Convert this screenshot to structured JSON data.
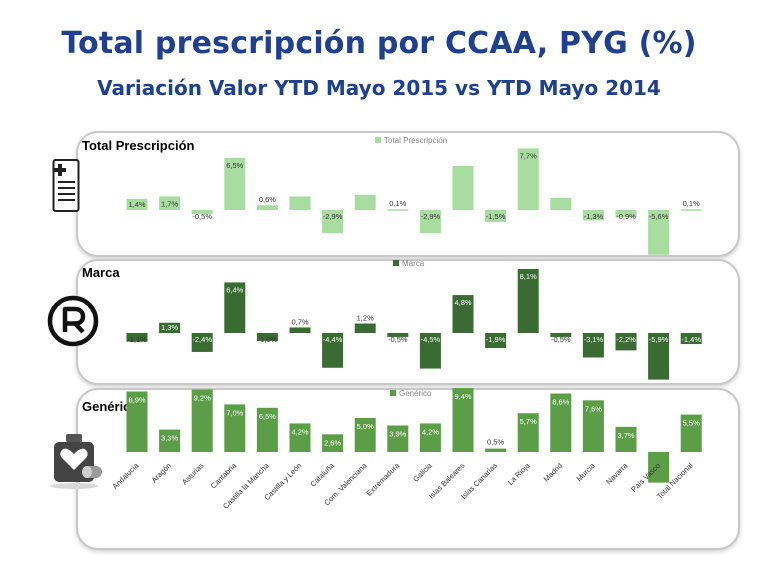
{
  "header": {
    "title": "Total prescripción por CCAA, PYG (%)",
    "subtitle": "Variación Valor YTD Mayo 2015 vs YTD Mayo 2014"
  },
  "icons": {
    "prescription": "prescription-document-icon",
    "marca": "registered-trademark-icon",
    "genericos": "medicine-pills-icon"
  },
  "chart_data": [
    {
      "type": "bar",
      "panel_title": "Total Prescripción",
      "legend": "Total Prescripción",
      "color": "#a8dca0",
      "categories": [
        "Andalucía",
        "Aragón",
        "Asturias",
        "Cantabria",
        "Castilla la Mancha",
        "Castilla y León",
        "Cataluña",
        "Com. Valenciana",
        "Extremadura",
        "Galicia",
        "Islas Baleares",
        "Islas Canarias",
        "La Rioja",
        "Madrid",
        "Murcia",
        "Navarra",
        "País Vasco",
        "Total Nacional"
      ],
      "values": [
        1.4,
        1.7,
        -0.5,
        6.5,
        0.6,
        1.7,
        -2.9,
        1.9,
        0.1,
        -2.9,
        5.5,
        -1.5,
        7.7,
        1.5,
        -1.3,
        -0.9,
        -5.6,
        0.1
      ],
      "labels": [
        "1,4%",
        "1,7%",
        "-0,5%",
        "6,5%",
        "0,6%",
        "",
        "-2,9%",
        "",
        "0,1%",
        "-2,9%",
        "",
        "-1,5%",
        "7,7%",
        "",
        "-1,3%",
        "-0,9%",
        "-5,6%",
        "0,1%"
      ]
    },
    {
      "type": "bar",
      "panel_title": "Marca",
      "legend": "Marca",
      "color": "#3a6b32",
      "categories": [
        "Andalucía",
        "Aragón",
        "Asturias",
        "Cantabria",
        "Castilla la Mancha",
        "Castilla y León",
        "Cataluña",
        "Com. Valenciana",
        "Extremadura",
        "Galicia",
        "Islas Baleares",
        "Islas Canarias",
        "La Rioja",
        "Madrid",
        "Murcia",
        "Navarra",
        "País Vasco",
        "Total Nacional"
      ],
      "values": [
        -1.1,
        1.3,
        -2.4,
        6.4,
        -1.0,
        0.7,
        -4.4,
        1.2,
        -0.5,
        -4.5,
        4.8,
        -1.9,
        8.1,
        -0.5,
        -3.1,
        -2.2,
        -5.9,
        -1.4
      ],
      "labels": [
        "-1,1%",
        "1,3%",
        "-2,4%",
        "6,4%",
        "-1,0%",
        "0,7%",
        "-4,4%",
        "1,2%",
        "-0,5%",
        "-4,5%",
        "4,8%",
        "-1,9%",
        "8,1%",
        "-0,5%",
        "-3,1%",
        "-2,2%",
        "-5,9%",
        "-1,4%"
      ]
    },
    {
      "type": "bar",
      "panel_title": "Genéricos",
      "legend": "Genérico",
      "color": "#5c9e48",
      "categories": [
        "Andalucía",
        "Aragón",
        "Asturias",
        "Cantabria",
        "Castilla la Mancha",
        "Castilla y León",
        "Cataluña",
        "Com. Valenciana",
        "Extremadura",
        "Galicia",
        "Islas Baleares",
        "Islas Canarias",
        "La Rioja",
        "Madrid",
        "Murcia",
        "Navarra",
        "País Vasco",
        "Total Nacional"
      ],
      "values": [
        8.9,
        3.3,
        9.2,
        7.0,
        6.5,
        4.2,
        2.6,
        5.0,
        3.9,
        4.2,
        9.4,
        0.5,
        5.7,
        8.6,
        7.6,
        3.7,
        -4.5,
        5.5
      ],
      "labels": [
        "8,9%",
        "3,3%",
        "9,2%",
        "7,0%",
        "6,5%",
        "4,2%",
        "2,6%",
        "5,0%",
        "3,9%",
        "4,2%",
        "9,4%",
        "0,5%",
        "5,7%",
        "8,6%",
        "7,6%",
        "3,7%",
        "-4,5%",
        "5,5%"
      ]
    }
  ]
}
